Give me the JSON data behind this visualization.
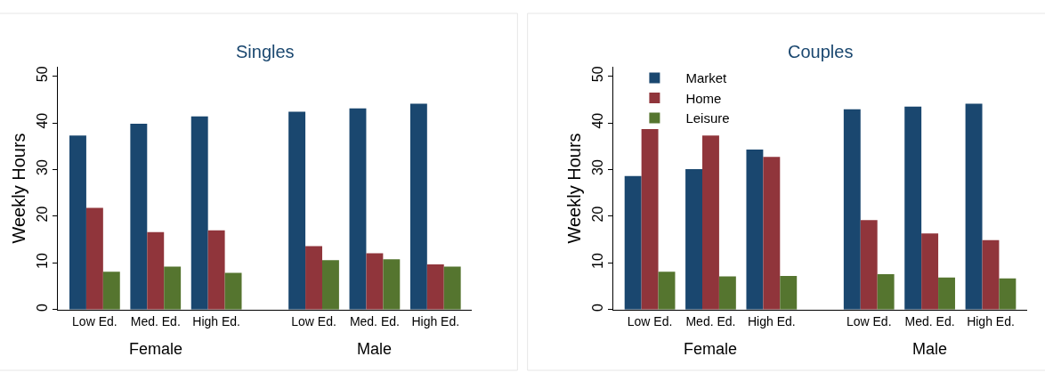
{
  "chart_data": [
    {
      "type": "bar",
      "title": "Singles",
      "ylabel": "Weekly Hours",
      "categories": [
        "Low Ed.",
        "Med. Ed.",
        "High Ed.",
        "Low Ed.",
        "Med. Ed.",
        "High Ed."
      ],
      "annotations": [
        "Female",
        "Male"
      ],
      "ylim": [
        0,
        52
      ],
      "yticks": [
        0,
        10,
        20,
        30,
        40,
        50
      ],
      "legend": false,
      "series": [
        {
          "color": "#1a476f",
          "values": [
            37.3,
            39.8,
            41.4,
            42.4,
            43.1,
            44.1
          ]
        },
        {
          "color": "#90353b",
          "values": [
            21.8,
            16.6,
            17.0,
            13.6,
            12.1,
            9.7
          ]
        },
        {
          "color": "#55752f",
          "values": [
            8.1,
            9.2,
            7.9,
            10.6,
            10.8,
            9.2
          ]
        }
      ]
    },
    {
      "type": "bar",
      "title": "Couples",
      "ylabel": "Weekly Hours",
      "categories": [
        "Low Ed.",
        "Med. Ed.",
        "High Ed.",
        "Low Ed.",
        "Med. Ed.",
        "High Ed."
      ],
      "annotations": [
        "Female",
        "Male"
      ],
      "ylim": [
        0,
        52
      ],
      "yticks": [
        0,
        10,
        20,
        30,
        40,
        50
      ],
      "legend": "top left",
      "series": [
        {
          "name": "Market",
          "color": "#1a476f",
          "values": [
            28.6,
            30.1,
            34.3,
            42.9,
            43.5,
            44.1
          ]
        },
        {
          "name": "Home",
          "color": "#90353b",
          "values": [
            38.7,
            37.3,
            32.7,
            19.2,
            16.3,
            14.9
          ]
        },
        {
          "name": "Leisure",
          "color": "#55752f",
          "values": [
            8.1,
            7.1,
            7.2,
            7.6,
            6.9,
            6.7
          ]
        }
      ]
    }
  ]
}
